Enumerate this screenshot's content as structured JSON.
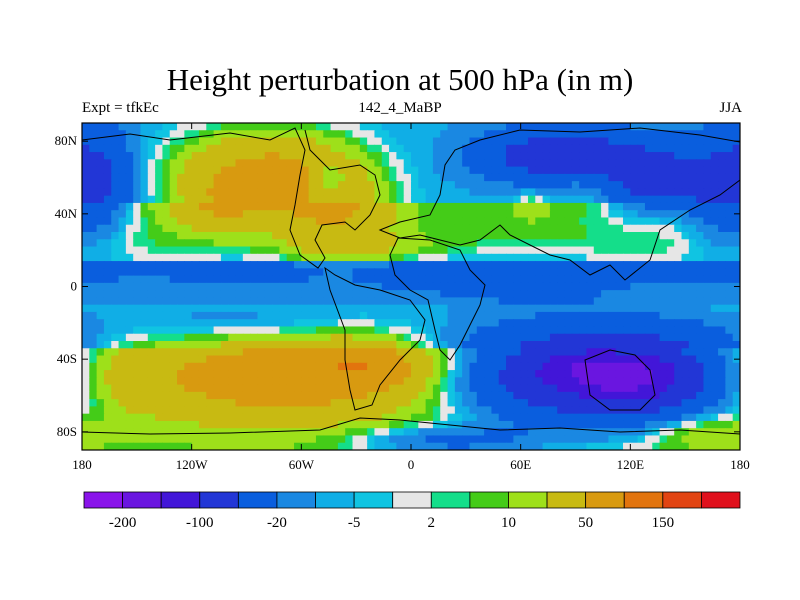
{
  "chart_data": {
    "type": "heatmap",
    "title": "Height perturbation at 500 hPa (in m)",
    "left_string": "Expt = tfkEc",
    "center_string": "142_4_MaBP",
    "right_string": "JJA",
    "x_ticks": [
      {
        "value": -180,
        "label": "180"
      },
      {
        "value": -120,
        "label": "120W"
      },
      {
        "value": -60,
        "label": "60W"
      },
      {
        "value": 0,
        "label": "0"
      },
      {
        "value": 60,
        "label": "60E"
      },
      {
        "value": 120,
        "label": "120E"
      },
      {
        "value": 180,
        "label": "180"
      }
    ],
    "y_ticks": [
      {
        "value": 80,
        "label": "80N"
      },
      {
        "value": 40,
        "label": "40N"
      },
      {
        "value": 0,
        "label": "0"
      },
      {
        "value": -40,
        "label": "40S"
      },
      {
        "value": -80,
        "label": "80S"
      }
    ],
    "xlim": [
      -180,
      180
    ],
    "ylim": [
      -90,
      90
    ],
    "levels": [
      -200,
      -150,
      -100,
      -50,
      -20,
      -10,
      -5,
      -2,
      2,
      5,
      10,
      20,
      50,
      100,
      150,
      200
    ],
    "colors": [
      "#8a14ea",
      "#6a16e0",
      "#4216d8",
      "#2236d6",
      "#0a5ede",
      "#1a88e2",
      "#10aee6",
      "#10c4e2",
      "#e6e6e6",
      "#14de8a",
      "#44cc18",
      "#9ee01a",
      "#c8ba12",
      "#d89a10",
      "#e2740e",
      "#e24412",
      "#e0101c"
    ],
    "colorbar_labels": [
      {
        "level": -200,
        "label": "-200"
      },
      {
        "level": -100,
        "label": "-100"
      },
      {
        "level": -20,
        "label": "-20"
      },
      {
        "level": -5,
        "label": "-5"
      },
      {
        "level": 2,
        "label": "2"
      },
      {
        "level": 10,
        "label": "10"
      },
      {
        "level": 50,
        "label": "50"
      },
      {
        "level": 150,
        "label": "150"
      }
    ],
    "blobs": [
      {
        "lon": -80,
        "lat": 62,
        "rx": 45,
        "ry": 22,
        "amp": 70
      },
      {
        "lon": -40,
        "lat": 40,
        "rx": 28,
        "ry": 26,
        "amp": 40
      },
      {
        "lon": -105,
        "lat": 45,
        "rx": 22,
        "ry": 14,
        "amp": 30
      },
      {
        "lon": -45,
        "lat": 58,
        "rx": 10,
        "ry": 10,
        "amp": -40
      },
      {
        "lon": -45,
        "lat": 58,
        "rx": 18,
        "ry": 16,
        "amp": 0
      },
      {
        "lon": 80,
        "lat": 72,
        "rx": 40,
        "ry": 14,
        "amp": -70
      },
      {
        "lon": 130,
        "lat": 60,
        "rx": 30,
        "ry": 18,
        "amp": -60
      },
      {
        "lon": 100,
        "lat": 55,
        "rx": 20,
        "ry": 12,
        "amp": 20
      },
      {
        "lon": 65,
        "lat": 45,
        "rx": 10,
        "ry": 8,
        "amp": 15
      },
      {
        "lon": 170,
        "lat": 55,
        "rx": 20,
        "ry": 30,
        "amp": -40
      },
      {
        "lon": -170,
        "lat": 60,
        "rx": 18,
        "ry": 30,
        "amp": -40
      },
      {
        "lon": -60,
        "lat": 10,
        "rx": 120,
        "ry": 10,
        "amp": -15
      },
      {
        "lon": 70,
        "lat": 5,
        "rx": 90,
        "ry": 12,
        "amp": -15
      },
      {
        "lon": -20,
        "lat": 20,
        "rx": 40,
        "ry": 8,
        "amp": 12
      },
      {
        "lon": 140,
        "lat": -5,
        "rx": 40,
        "ry": 8,
        "amp": 8
      },
      {
        "lon": -90,
        "lat": -20,
        "rx": 60,
        "ry": 10,
        "amp": -12
      },
      {
        "lon": -70,
        "lat": -50,
        "rx": 80,
        "ry": 22,
        "amp": 70
      },
      {
        "lon": -160,
        "lat": -50,
        "rx": 30,
        "ry": 20,
        "amp": 25
      },
      {
        "lon": -25,
        "lat": -43,
        "rx": 30,
        "ry": 12,
        "amp": 50
      },
      {
        "lon": 105,
        "lat": -50,
        "rx": 75,
        "ry": 25,
        "amp": -110
      },
      {
        "lon": 90,
        "lat": -45,
        "rx": 25,
        "ry": 10,
        "amp": -50
      },
      {
        "lon": 120,
        "lat": -50,
        "rx": 25,
        "ry": 12,
        "amp": -80
      },
      {
        "lon": 160,
        "lat": -80,
        "rx": 30,
        "ry": 10,
        "amp": 20
      },
      {
        "lon": 20,
        "lat": -85,
        "rx": 50,
        "ry": 8,
        "amp": -30
      }
    ]
  }
}
